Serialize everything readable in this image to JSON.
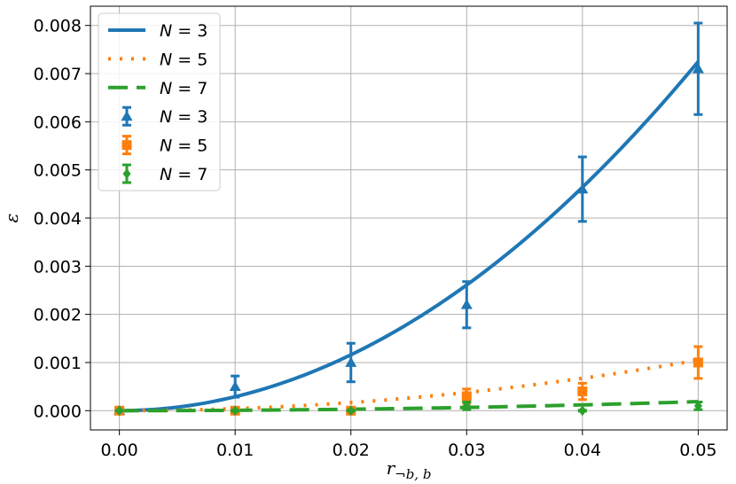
{
  "chart_data": {
    "type": "line",
    "xlabel": "r¬b, b",
    "ylabel": "ε",
    "xlim": [
      -0.0025,
      0.0525
    ],
    "ylim": [
      -0.0004,
      0.0084
    ],
    "xticks": [
      0.0,
      0.01,
      0.02,
      0.03,
      0.04,
      0.05
    ],
    "xtick_labels": [
      "0.00",
      "0.01",
      "0.02",
      "0.03",
      "0.04",
      "0.05"
    ],
    "yticks": [
      0.0,
      0.001,
      0.002,
      0.003,
      0.004,
      0.005,
      0.006,
      0.007,
      0.008
    ],
    "ytick_labels": [
      "0.000",
      "0.001",
      "0.002",
      "0.003",
      "0.004",
      "0.005",
      "0.006",
      "0.007",
      "0.008"
    ],
    "grid": true,
    "legend_position": "top-left",
    "colors": {
      "N3": "#1f77b4",
      "N5": "#ff7f0e",
      "N7": "#2ca02c"
    },
    "fit_series": [
      {
        "name": "N = 3",
        "style": "solid",
        "color": "#1f77b4",
        "coef": 2.9
      },
      {
        "name": "N = 5",
        "style": "dotted",
        "color": "#ff7f0e",
        "coef": 0.42
      },
      {
        "name": "N = 7",
        "style": "dashed",
        "color": "#2ca02c",
        "coef": 0.075
      }
    ],
    "errorbar_series": [
      {
        "name": "N = 3",
        "marker": "triangle",
        "color": "#1f77b4",
        "x": [
          0.0,
          0.01,
          0.02,
          0.03,
          0.04,
          0.05
        ],
        "y": [
          0.0,
          0.0005,
          0.001,
          0.0022,
          0.0046,
          0.0071
        ],
        "err": [
          2e-05,
          0.00022,
          0.0004,
          0.00048,
          0.00067,
          0.00095
        ]
      },
      {
        "name": "N = 5",
        "marker": "square",
        "color": "#ff7f0e",
        "x": [
          0.0,
          0.01,
          0.02,
          0.03,
          0.04,
          0.05
        ],
        "y": [
          0.0,
          0.0,
          0.0,
          0.0003,
          0.0004,
          0.001
        ],
        "err": [
          1e-05,
          1e-05,
          1e-05,
          0.00015,
          0.00017,
          0.00033
        ]
      },
      {
        "name": "N = 7",
        "marker": "diamond",
        "color": "#2ca02c",
        "x": [
          0.0,
          0.01,
          0.02,
          0.03,
          0.04,
          0.05
        ],
        "y": [
          0.0,
          0.0,
          0.0,
          0.0001,
          0.0,
          0.0001
        ],
        "err": [
          1e-05,
          1e-05,
          1e-05,
          8e-05,
          1e-05,
          8e-05
        ]
      }
    ],
    "legend": [
      {
        "label": "N = 3",
        "kind": "line",
        "style": "solid",
        "color": "#1f77b4"
      },
      {
        "label": "N = 5",
        "kind": "line",
        "style": "dotted",
        "color": "#ff7f0e"
      },
      {
        "label": "N = 7",
        "kind": "line",
        "style": "dashed",
        "color": "#2ca02c"
      },
      {
        "label": "N = 3",
        "kind": "errorbar",
        "marker": "triangle",
        "color": "#1f77b4"
      },
      {
        "label": "N = 5",
        "kind": "errorbar",
        "marker": "square",
        "color": "#ff7f0e"
      },
      {
        "label": "N = 7",
        "kind": "errorbar",
        "marker": "diamond",
        "color": "#2ca02c"
      }
    ]
  }
}
